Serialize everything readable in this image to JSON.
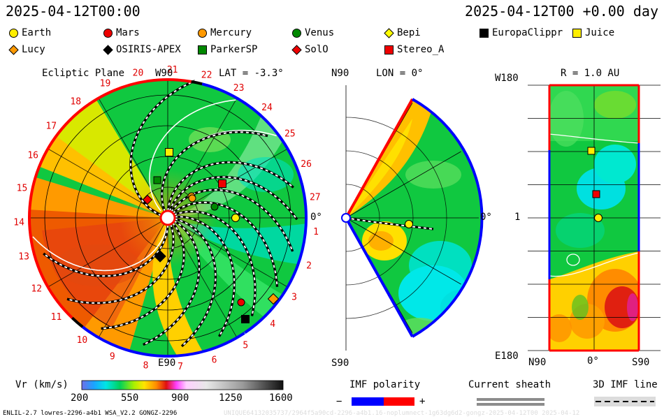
{
  "header": {
    "left": "2025-04-12T00:00",
    "right": "2025-04-12T00 +0.00 day"
  },
  "legend": [
    {
      "label": "Earth",
      "shape": "circle",
      "color": "#ffee00"
    },
    {
      "label": "Mars",
      "shape": "circle",
      "color": "#ee0000"
    },
    {
      "label": "Mercury",
      "shape": "circle",
      "color": "#ff9900"
    },
    {
      "label": "Venus",
      "shape": "circle",
      "color": "#008800"
    },
    {
      "label": "Bepi",
      "shape": "diamond",
      "color": "#ffff00"
    },
    {
      "label": "EuropaClippr",
      "shape": "square",
      "color": "#000000"
    },
    {
      "label": "Juice",
      "shape": "square",
      "color": "#ffee00"
    },
    {
      "label": "Lucy",
      "shape": "diamond",
      "color": "#ff9900"
    },
    {
      "label": "OSIRIS-APEX",
      "shape": "diamond",
      "color": "#000000"
    },
    {
      "label": "ParkerSP",
      "shape": "square",
      "color": "#008800"
    },
    {
      "label": "SolO",
      "shape": "diamond",
      "color": "#ee0000"
    },
    {
      "label": "Stereo_A",
      "shape": "square",
      "color": "#ee0000"
    }
  ],
  "ecliptic": {
    "title": "Ecliptic Plane",
    "lat": "LAT = -3.3°",
    "top_label": "W90",
    "bottom_label": "E90",
    "right_label": "0°",
    "carrington": [
      "1",
      "2",
      "3",
      "4",
      "5",
      "6",
      "7",
      "8",
      "9",
      "10",
      "11",
      "12",
      "13",
      "14",
      "15",
      "16",
      "17",
      "18",
      "19",
      "20",
      "21",
      "22",
      "23",
      "24",
      "25",
      "26",
      "27"
    ]
  },
  "meridional": {
    "title": "LON = 0°",
    "top_label": "N90",
    "bottom_label": "S90",
    "right_label": "0°"
  },
  "radial": {
    "title": "R = 1.0 AU",
    "top_label": "W180",
    "mid_label": "1",
    "bottom_label": "E180",
    "x_labels": [
      "N90",
      "0°",
      "S90"
    ]
  },
  "colorbar": {
    "title": "Vr (km/s)",
    "ticks": [
      "200",
      "550",
      "900",
      "1250",
      "1600"
    ]
  },
  "imf": {
    "title": "IMF polarity",
    "minus": "−",
    "plus": "+",
    "neg_color": "#0000ff",
    "pos_color": "#ff0000"
  },
  "sheath": {
    "title": "Current sheath"
  },
  "imfline": {
    "title": "3D IMF line"
  },
  "footer": "ENLIL-2.7 lowres-2296-a4b1 WSA_V2.2 GONGZ-2296",
  "footer_faint": "UNIQUE64132035737/2964f5a90cd-2296-a4b1.16-noplumnect-1g63dg6d2-gongz-2025-04-12T00    2025-04-12"
}
